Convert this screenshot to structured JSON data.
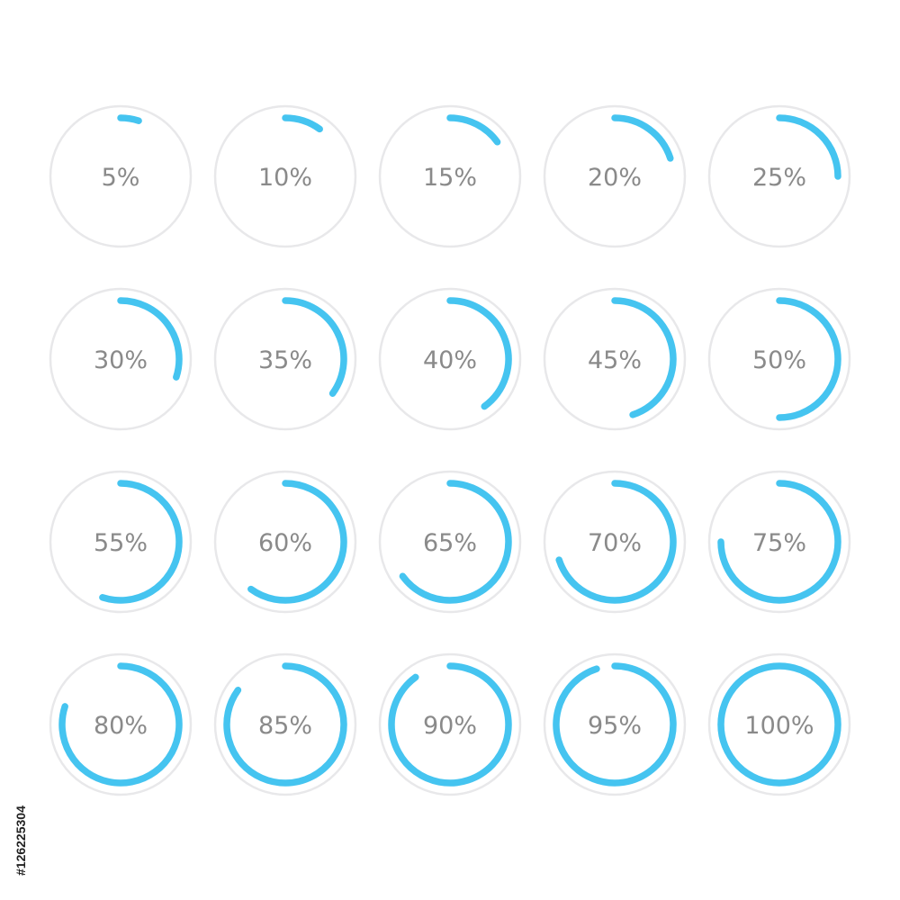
{
  "rings": [
    {
      "label": "5%",
      "value": 5
    },
    {
      "label": "10%",
      "value": 10
    },
    {
      "label": "15%",
      "value": 15
    },
    {
      "label": "20%",
      "value": 20
    },
    {
      "label": "25%",
      "value": 25
    },
    {
      "label": "30%",
      "value": 30
    },
    {
      "label": "35%",
      "value": 35
    },
    {
      "label": "40%",
      "value": 40
    },
    {
      "label": "45%",
      "value": 45
    },
    {
      "label": "50%",
      "value": 50
    },
    {
      "label": "55%",
      "value": 55
    },
    {
      "label": "60%",
      "value": 60
    },
    {
      "label": "65%",
      "value": 65
    },
    {
      "label": "70%",
      "value": 70
    },
    {
      "label": "75%",
      "value": 75
    },
    {
      "label": "80%",
      "value": 80
    },
    {
      "label": "85%",
      "value": 85
    },
    {
      "label": "90%",
      "value": 90
    },
    {
      "label": "95%",
      "value": 95
    },
    {
      "label": "100%",
      "value": 100
    }
  ],
  "colors": {
    "progress": "#45c4f0",
    "track": "#e8e8ea",
    "label": "#8a8a8a"
  },
  "stock_id": "#126225304"
}
